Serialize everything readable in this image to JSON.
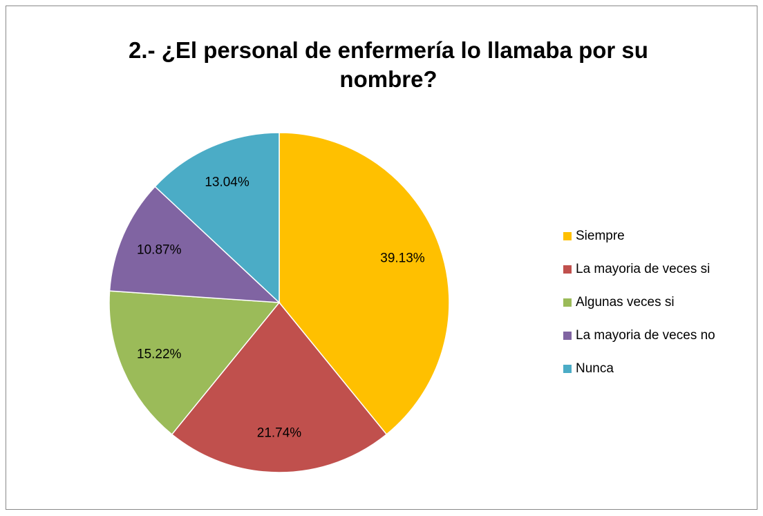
{
  "chart_data": {
    "type": "pie",
    "title": "2.- ¿El personal de enfermería lo llamaba por su nombre?",
    "categories": [
      "Siempre",
      "La mayoria de veces si",
      "Algunas veces si",
      "La mayoria de veces no",
      "Nunca"
    ],
    "values": [
      39.13,
      21.74,
      15.22,
      10.87,
      13.04
    ],
    "value_labels": [
      "39.13%",
      "21.74%",
      "15.22%",
      "10.87%",
      "13.04%"
    ],
    "colors": [
      "#ffc000",
      "#c0504d",
      "#9bbb59",
      "#8064a2",
      "#4bacc6"
    ],
    "legend": "right"
  }
}
